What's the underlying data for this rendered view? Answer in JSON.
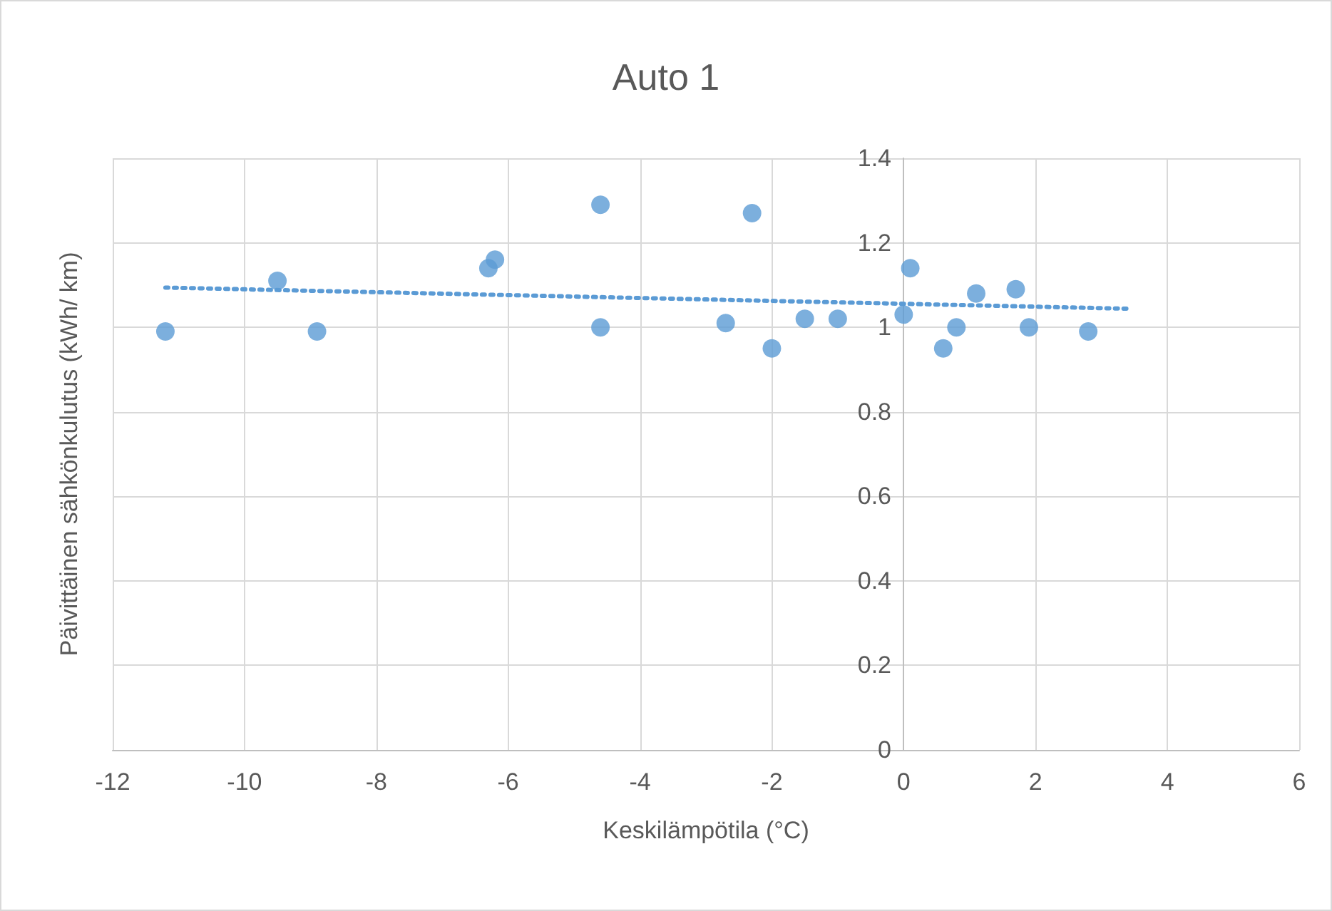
{
  "chart_data": {
    "type": "scatter",
    "title": "Auto 1",
    "xlabel": "Keskilämpötila (°C)",
    "ylabel": "Päivittäinen sähkönkulutus (kWh/ km)",
    "xlim": [
      -12,
      6
    ],
    "xticks": [
      -12,
      -10,
      -8,
      -6,
      -4,
      -2,
      0,
      2,
      4,
      6
    ],
    "ylim": [
      0,
      1.4
    ],
    "yticks": [
      0,
      0.2,
      0.4,
      0.6,
      0.8,
      1,
      1.2,
      1.4
    ],
    "grid": true,
    "marker": "circle",
    "series": [
      {
        "color": "#5b9bd5",
        "x": [
          -11.2,
          -9.5,
          -8.9,
          -6.3,
          -6.2,
          -4.6,
          -4.6,
          -2.7,
          -2.3,
          -2.0,
          -1.5,
          -1.0,
          0.0,
          0.1,
          0.6,
          0.8,
          1.1,
          1.7,
          1.9,
          2.8
        ],
        "values": [
          0.99,
          1.11,
          0.99,
          1.14,
          1.16,
          1.29,
          1.0,
          1.01,
          1.27,
          0.95,
          1.02,
          1.02,
          1.03,
          1.14,
          0.95,
          1.0,
          1.08,
          1.09,
          1.0,
          0.99
        ]
      },
      {
        "type": "line",
        "color": "#5b9bd5",
        "line_style": "dotted",
        "marker": "none",
        "x": [
          -11.2,
          3.4
        ],
        "values": [
          1.094,
          1.044
        ]
      }
    ]
  }
}
